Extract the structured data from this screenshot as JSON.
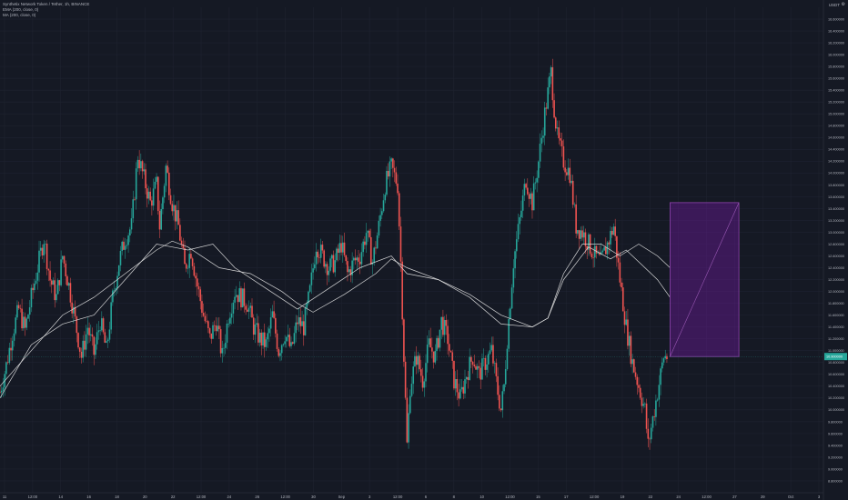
{
  "legend": {
    "symbol": "Synthetix Network Token / Tether, 1h, BINANCE",
    "ema": "EMA (200, close, 0)",
    "ma": "MA (200, close, 0)"
  },
  "axis": {
    "currency": "USDT",
    "settings_icon": "gear-icon"
  },
  "colors": {
    "background": "#151924",
    "up": "#26a69a",
    "down": "#ef5350",
    "ma_line": "#e8e8e8",
    "grid": "#1f2330",
    "box_fill": "#6a1b9a",
    "box_stroke": "#8e44ad"
  },
  "chart_data": {
    "type": "candlestick",
    "ylim": [
      8.6,
      16.8
    ],
    "y_ticks": [
      "16.600000",
      "16.400000",
      "16.200000",
      "16.000000",
      "15.800000",
      "15.600000",
      "15.400000",
      "15.200000",
      "15.000000",
      "14.800000",
      "14.600000",
      "14.400000",
      "14.200000",
      "14.000000",
      "13.800000",
      "13.600000",
      "13.400000",
      "13.200000",
      "13.000000",
      "12.800000",
      "12.600000",
      "12.400000",
      "12.200000",
      "12.000000",
      "11.800000",
      "11.600000",
      "11.400000",
      "11.200000",
      "11.000000",
      "10.800000",
      "10.600000",
      "10.400000",
      "10.200000",
      "10.000000",
      "9.800000",
      "9.600000",
      "9.400000",
      "9.200000",
      "9.000000",
      "8.800000"
    ],
    "x_ticks": [
      "11",
      "12:00",
      "14",
      "16",
      "18",
      "20",
      "22",
      "12:00",
      "24",
      "26",
      "12:00",
      "30",
      "Sep",
      "3",
      "12:00",
      "6",
      "8",
      "10",
      "12:00",
      "15",
      "17",
      "12:00",
      "19",
      "22",
      "24",
      "12:00",
      "27",
      "29",
      "Oct",
      "3"
    ],
    "current_price": "10.900000",
    "close_path": [
      [
        0,
        10.3
      ],
      [
        2,
        10.75
      ],
      [
        4,
        11.3
      ],
      [
        6,
        11.7
      ],
      [
        8,
        11.35
      ],
      [
        10,
        11.9
      ],
      [
        12,
        12.4
      ],
      [
        14,
        12.9
      ],
      [
        16,
        12.2
      ],
      [
        18,
        11.9
      ],
      [
        20,
        12.6
      ],
      [
        22,
        12.1
      ],
      [
        24,
        11.5
      ],
      [
        26,
        10.9
      ],
      [
        28,
        11.4
      ],
      [
        30,
        10.95
      ],
      [
        32,
        11.5
      ],
      [
        34,
        11.0
      ],
      [
        36,
        11.9
      ],
      [
        38,
        12.5
      ],
      [
        40,
        12.9
      ],
      [
        42,
        13.1
      ],
      [
        44,
        14.3
      ],
      [
        46,
        13.9
      ],
      [
        48,
        13.5
      ],
      [
        50,
        13.8
      ],
      [
        51,
        13.1
      ],
      [
        53,
        14.1
      ],
      [
        55,
        13.5
      ],
      [
        57,
        13.1
      ],
      [
        59,
        12.4
      ],
      [
        61,
        12.7
      ],
      [
        63,
        12.1
      ],
      [
        65,
        11.6
      ],
      [
        67,
        11.2
      ],
      [
        69,
        11.5
      ],
      [
        71,
        10.9
      ],
      [
        73,
        11.6
      ],
      [
        75,
        12.0
      ],
      [
        77,
        11.9
      ],
      [
        79,
        11.8
      ],
      [
        81,
        11.4
      ],
      [
        83,
        11.2
      ],
      [
        85,
        11.1
      ],
      [
        87,
        11.6
      ],
      [
        89,
        11.0
      ],
      [
        91,
        11.3
      ],
      [
        93,
        11.0
      ],
      [
        95,
        11.5
      ],
      [
        97,
        11.4
      ],
      [
        99,
        12.0
      ],
      [
        101,
        12.8
      ],
      [
        103,
        12.6
      ],
      [
        105,
        12.4
      ],
      [
        107,
        12.5
      ],
      [
        109,
        12.8
      ],
      [
        111,
        12.3
      ],
      [
        113,
        12.5
      ],
      [
        115,
        12.6
      ],
      [
        117,
        13.0
      ],
      [
        119,
        12.5
      ],
      [
        121,
        13.1
      ],
      [
        123,
        13.8
      ],
      [
        125,
        14.1
      ],
      [
        127,
        13.8
      ],
      [
        128,
        12.5
      ],
      [
        129,
        10.9
      ],
      [
        130,
        9.4
      ],
      [
        131,
        10.4
      ],
      [
        133,
        10.9
      ],
      [
        135,
        10.5
      ],
      [
        137,
        11.1
      ],
      [
        139,
        10.9
      ],
      [
        141,
        11.5
      ],
      [
        143,
        11.2
      ],
      [
        145,
        10.5
      ],
      [
        147,
        10.2
      ],
      [
        149,
        10.6
      ],
      [
        151,
        10.9
      ],
      [
        153,
        10.6
      ],
      [
        155,
        10.8
      ],
      [
        157,
        11.0
      ],
      [
        159,
        10.3
      ],
      [
        160,
        10.0
      ],
      [
        161,
        10.4
      ],
      [
        162,
        11.2
      ],
      [
        164,
        12.5
      ],
      [
        166,
        13.2
      ],
      [
        168,
        13.9
      ],
      [
        170,
        13.5
      ],
      [
        172,
        14.2
      ],
      [
        174,
        15.0
      ],
      [
        176,
        15.7
      ],
      [
        177,
        15.1
      ],
      [
        178,
        14.6
      ],
      [
        180,
        14.2
      ],
      [
        182,
        14.0
      ],
      [
        184,
        13.1
      ],
      [
        186,
        13.0
      ],
      [
        188,
        12.8
      ],
      [
        190,
        12.6
      ],
      [
        192,
        12.5
      ],
      [
        194,
        12.8
      ],
      [
        196,
        13.1
      ],
      [
        198,
        12.2
      ],
      [
        200,
        11.4
      ],
      [
        202,
        10.8
      ],
      [
        204,
        10.4
      ],
      [
        206,
        10.0
      ],
      [
        207,
        9.4
      ],
      [
        208,
        9.7
      ],
      [
        210,
        10.3
      ],
      [
        212,
        10.9
      ],
      [
        213,
        10.9
      ]
    ],
    "ma_path": [
      [
        0,
        10.4
      ],
      [
        10,
        11.0
      ],
      [
        20,
        11.6
      ],
      [
        30,
        11.9
      ],
      [
        40,
        12.3
      ],
      [
        50,
        12.7
      ],
      [
        55,
        12.85
      ],
      [
        60,
        12.75
      ],
      [
        70,
        12.4
      ],
      [
        80,
        12.3
      ],
      [
        90,
        12.0
      ],
      [
        95,
        11.8
      ],
      [
        100,
        11.65
      ],
      [
        110,
        11.95
      ],
      [
        120,
        12.3
      ],
      [
        125,
        12.55
      ],
      [
        130,
        12.4
      ],
      [
        140,
        12.2
      ],
      [
        150,
        11.9
      ],
      [
        160,
        11.45
      ],
      [
        170,
        11.4
      ],
      [
        175,
        11.55
      ],
      [
        180,
        12.2
      ],
      [
        188,
        12.75
      ],
      [
        195,
        12.55
      ],
      [
        200,
        12.7
      ],
      [
        205,
        12.45
      ],
      [
        210,
        12.2
      ],
      [
        214,
        11.9
      ]
    ],
    "ema_path": [
      [
        0,
        10.2
      ],
      [
        10,
        11.1
      ],
      [
        20,
        11.45
      ],
      [
        30,
        11.6
      ],
      [
        40,
        12.2
      ],
      [
        50,
        12.8
      ],
      [
        55,
        12.75
      ],
      [
        60,
        12.7
      ],
      [
        68,
        12.8
      ],
      [
        75,
        12.4
      ],
      [
        85,
        12.05
      ],
      [
        95,
        11.7
      ],
      [
        105,
        12.05
      ],
      [
        115,
        12.4
      ],
      [
        125,
        12.6
      ],
      [
        130,
        12.3
      ],
      [
        140,
        12.2
      ],
      [
        150,
        11.95
      ],
      [
        160,
        11.6
      ],
      [
        170,
        11.4
      ],
      [
        175,
        11.55
      ],
      [
        180,
        12.3
      ],
      [
        186,
        12.8
      ],
      [
        192,
        12.8
      ],
      [
        198,
        12.6
      ],
      [
        204,
        12.8
      ],
      [
        210,
        12.6
      ],
      [
        214,
        12.4
      ]
    ],
    "box": {
      "x_start": 214,
      "x_end": 236,
      "y_low": 10.9,
      "y_high": 13.5
    },
    "x_domain": [
      0,
      263
    ]
  }
}
